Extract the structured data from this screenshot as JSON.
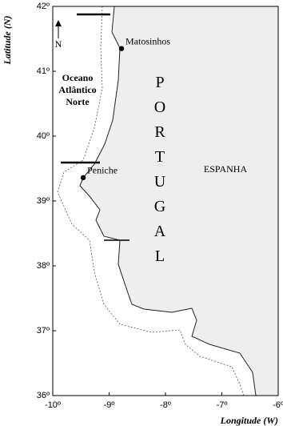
{
  "map": {
    "ylabel": "Latitude (N)",
    "xlabel": "Longitude (W)",
    "xlim": [
      -10,
      -6
    ],
    "ylim": [
      36,
      42
    ],
    "xticks": [
      {
        "value": -10,
        "label": "-10º"
      },
      {
        "value": -9,
        "label": "-9º"
      },
      {
        "value": -8,
        "label": "-8º"
      },
      {
        "value": -7,
        "label": "-7º"
      },
      {
        "value": -6,
        "label": "-6º"
      }
    ],
    "yticks": [
      {
        "value": 36,
        "label": "36º"
      },
      {
        "value": 37,
        "label": "37º"
      },
      {
        "value": 38,
        "label": "38º"
      },
      {
        "value": 39,
        "label": "39º"
      },
      {
        "value": 40,
        "label": "40º"
      },
      {
        "value": 41,
        "label": "41º"
      },
      {
        "value": 42,
        "label": "42º"
      }
    ],
    "north": "N",
    "ocean": [
      "Oceano",
      "Atlântico",
      "Norte"
    ],
    "country": "PORTUGAL",
    "neighbour": "ESPANHA",
    "places": [
      {
        "name": "Matosinhos",
        "lon": -8.78,
        "lat": 41.35
      },
      {
        "name": "Peniche",
        "lon": -9.46,
        "lat": 39.36
      }
    ]
  }
}
